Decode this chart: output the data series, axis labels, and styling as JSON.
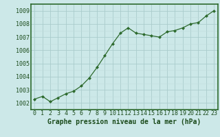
{
  "x": [
    0,
    1,
    2,
    3,
    4,
    5,
    6,
    7,
    8,
    9,
    10,
    11,
    12,
    13,
    14,
    15,
    16,
    17,
    18,
    19,
    20,
    21,
    22,
    23
  ],
  "y": [
    1002.3,
    1002.5,
    1002.1,
    1002.4,
    1002.7,
    1002.9,
    1003.3,
    1003.9,
    1004.7,
    1005.6,
    1006.5,
    1007.3,
    1007.7,
    1007.3,
    1007.2,
    1007.1,
    1007.0,
    1007.4,
    1007.5,
    1007.7,
    1008.0,
    1008.1,
    1008.6,
    1009.0
  ],
  "line_color": "#2d6a2d",
  "marker_color": "#2d6a2d",
  "bg_color": "#cce8e8",
  "plot_bg_color": "#cce8e8",
  "grid_color_major": "#aacccc",
  "grid_color_minor": "#c0dcdc",
  "border_color": "#2d6a2d",
  "xlabel": "Graphe pression niveau de la mer (hPa)",
  "ylim": [
    1001.5,
    1009.5
  ],
  "xlim": [
    -0.5,
    23.5
  ],
  "yticks": [
    1002,
    1003,
    1004,
    1005,
    1006,
    1007,
    1008,
    1009
  ],
  "xticks": [
    0,
    1,
    2,
    3,
    4,
    5,
    6,
    7,
    8,
    9,
    10,
    11,
    12,
    13,
    14,
    15,
    16,
    17,
    18,
    19,
    20,
    21,
    22,
    23
  ],
  "xlabel_fontsize": 7.0,
  "tick_fontsize": 6.0,
  "tick_color": "#1a4a1a",
  "xlabel_color": "#1a4a1a"
}
